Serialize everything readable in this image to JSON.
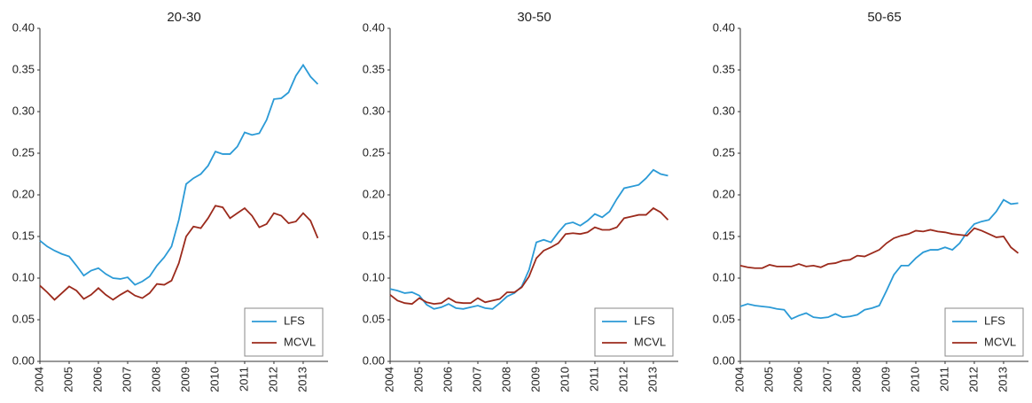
{
  "chart_data": [
    {
      "type": "line",
      "title": "20-30",
      "x": [
        2004,
        2004.25,
        2004.5,
        2004.75,
        2005,
        2005.25,
        2005.5,
        2005.75,
        2006,
        2006.25,
        2006.5,
        2006.75,
        2007,
        2007.25,
        2007.5,
        2007.75,
        2008,
        2008.25,
        2008.5,
        2008.75,
        2009,
        2009.25,
        2009.5,
        2009.75,
        2010,
        2010.25,
        2010.5,
        2010.75,
        2011,
        2011.25,
        2011.5,
        2011.75,
        2012,
        2012.25,
        2012.5,
        2012.75,
        2013,
        2013.25,
        2013.5
      ],
      "series": [
        {
          "name": "LFS",
          "color": "#2b9ad6",
          "values": [
            0.145,
            0.138,
            0.133,
            0.129,
            0.126,
            0.115,
            0.103,
            0.109,
            0.112,
            0.105,
            0.1,
            0.099,
            0.101,
            0.092,
            0.096,
            0.102,
            0.115,
            0.125,
            0.138,
            0.17,
            0.213,
            0.22,
            0.225,
            0.235,
            0.252,
            0.249,
            0.249,
            0.258,
            0.275,
            0.272,
            0.274,
            0.29,
            0.315,
            0.316,
            0.323,
            0.343,
            0.356,
            0.342,
            0.333
          ]
        },
        {
          "name": "MCVL",
          "color": "#9b2a1c",
          "values": [
            0.091,
            0.083,
            0.074,
            0.082,
            0.09,
            0.085,
            0.075,
            0.08,
            0.088,
            0.08,
            0.074,
            0.08,
            0.085,
            0.079,
            0.076,
            0.082,
            0.093,
            0.092,
            0.097,
            0.118,
            0.15,
            0.162,
            0.16,
            0.172,
            0.187,
            0.185,
            0.172,
            0.178,
            0.184,
            0.175,
            0.161,
            0.165,
            0.178,
            0.175,
            0.166,
            0.168,
            0.178,
            0.169,
            0.148
          ]
        }
      ],
      "xlim": [
        2004,
        2013.85
      ],
      "xticks": [
        2004,
        2005,
        2006,
        2007,
        2008,
        2009,
        2010,
        2011,
        2012,
        2013
      ],
      "ylim": [
        0,
        0.4
      ],
      "yticks": [
        {
          "value": 0,
          "label": "0.00"
        },
        {
          "value": 0.05,
          "label": "0.05"
        },
        {
          "value": 0.1,
          "label": "0.10"
        },
        {
          "value": 0.15,
          "label": "0.15"
        },
        {
          "value": 0.2,
          "label": "0.20"
        },
        {
          "value": 0.25,
          "label": "0.25"
        },
        {
          "value": 0.3,
          "label": "0.30"
        },
        {
          "value": 0.35,
          "label": "0.35"
        },
        {
          "value": 0.4,
          "label": "0.40"
        }
      ],
      "legend": "lower right"
    },
    {
      "type": "line",
      "title": "30-50",
      "x": [
        2004,
        2004.25,
        2004.5,
        2004.75,
        2005,
        2005.25,
        2005.5,
        2005.75,
        2006,
        2006.25,
        2006.5,
        2006.75,
        2007,
        2007.25,
        2007.5,
        2007.75,
        2008,
        2008.25,
        2008.5,
        2008.75,
        2009,
        2009.25,
        2009.5,
        2009.75,
        2010,
        2010.25,
        2010.5,
        2010.75,
        2011,
        2011.25,
        2011.5,
        2011.75,
        2012,
        2012.25,
        2012.5,
        2012.75,
        2013,
        2013.25,
        2013.5
      ],
      "series": [
        {
          "name": "LFS",
          "color": "#2b9ad6",
          "values": [
            0.087,
            0.085,
            0.082,
            0.083,
            0.079,
            0.068,
            0.063,
            0.065,
            0.069,
            0.064,
            0.063,
            0.065,
            0.067,
            0.064,
            0.063,
            0.07,
            0.078,
            0.082,
            0.09,
            0.11,
            0.143,
            0.146,
            0.143,
            0.155,
            0.165,
            0.167,
            0.163,
            0.169,
            0.177,
            0.173,
            0.18,
            0.195,
            0.208,
            0.21,
            0.212,
            0.22,
            0.23,
            0.225,
            0.223
          ]
        },
        {
          "name": "MCVL",
          "color": "#9b2a1c",
          "values": [
            0.08,
            0.073,
            0.07,
            0.069,
            0.076,
            0.071,
            0.069,
            0.07,
            0.076,
            0.071,
            0.07,
            0.07,
            0.076,
            0.071,
            0.073,
            0.075,
            0.083,
            0.083,
            0.089,
            0.102,
            0.124,
            0.133,
            0.137,
            0.142,
            0.153,
            0.154,
            0.153,
            0.155,
            0.161,
            0.158,
            0.158,
            0.161,
            0.172,
            0.174,
            0.176,
            0.176,
            0.184,
            0.179,
            0.17
          ]
        }
      ],
      "xlim": [
        2004,
        2013.85
      ],
      "xticks": [
        2004,
        2005,
        2006,
        2007,
        2008,
        2009,
        2010,
        2011,
        2012,
        2013
      ],
      "ylim": [
        0,
        0.4
      ],
      "yticks": [
        {
          "value": 0,
          "label": "0.00"
        },
        {
          "value": 0.05,
          "label": "0.05"
        },
        {
          "value": 0.1,
          "label": "0.10"
        },
        {
          "value": 0.15,
          "label": "0.15"
        },
        {
          "value": 0.2,
          "label": "0.20"
        },
        {
          "value": 0.25,
          "label": "0.25"
        },
        {
          "value": 0.3,
          "label": "0.30"
        },
        {
          "value": 0.35,
          "label": "0.35"
        },
        {
          "value": 0.4,
          "label": "0.40"
        }
      ],
      "legend": "lower right"
    },
    {
      "type": "line",
      "title": "50-65",
      "x": [
        2004,
        2004.25,
        2004.5,
        2004.75,
        2005,
        2005.25,
        2005.5,
        2005.75,
        2006,
        2006.25,
        2006.5,
        2006.75,
        2007,
        2007.25,
        2007.5,
        2007.75,
        2008,
        2008.25,
        2008.5,
        2008.75,
        2009,
        2009.25,
        2009.5,
        2009.75,
        2010,
        2010.25,
        2010.5,
        2010.75,
        2011,
        2011.25,
        2011.5,
        2011.75,
        2012,
        2012.25,
        2012.5,
        2012.75,
        2013,
        2013.25,
        2013.5
      ],
      "series": [
        {
          "name": "LFS",
          "color": "#2b9ad6",
          "values": [
            0.066,
            0.069,
            0.067,
            0.066,
            0.065,
            0.063,
            0.062,
            0.051,
            0.055,
            0.058,
            0.053,
            0.052,
            0.053,
            0.057,
            0.053,
            0.054,
            0.056,
            0.062,
            0.064,
            0.067,
            0.085,
            0.104,
            0.115,
            0.115,
            0.124,
            0.131,
            0.134,
            0.134,
            0.137,
            0.134,
            0.142,
            0.155,
            0.165,
            0.168,
            0.17,
            0.18,
            0.194,
            0.189,
            0.19
          ]
        },
        {
          "name": "MCVL",
          "color": "#9b2a1c",
          "values": [
            0.115,
            0.113,
            0.112,
            0.112,
            0.116,
            0.114,
            0.114,
            0.114,
            0.117,
            0.114,
            0.115,
            0.113,
            0.117,
            0.118,
            0.121,
            0.122,
            0.127,
            0.126,
            0.13,
            0.134,
            0.142,
            0.148,
            0.151,
            0.153,
            0.157,
            0.156,
            0.158,
            0.156,
            0.155,
            0.153,
            0.152,
            0.151,
            0.16,
            0.157,
            0.153,
            0.149,
            0.15,
            0.137,
            0.13
          ]
        }
      ],
      "xlim": [
        2004,
        2013.85
      ],
      "xticks": [
        2004,
        2005,
        2006,
        2007,
        2008,
        2009,
        2010,
        2011,
        2012,
        2013
      ],
      "ylim": [
        0,
        0.4
      ],
      "yticks": [
        {
          "value": 0,
          "label": "0.00"
        },
        {
          "value": 0.05,
          "label": "0.05"
        },
        {
          "value": 0.1,
          "label": "0.10"
        },
        {
          "value": 0.15,
          "label": "0.15"
        },
        {
          "value": 0.2,
          "label": "0.20"
        },
        {
          "value": 0.25,
          "label": "0.25"
        },
        {
          "value": 0.3,
          "label": "0.30"
        },
        {
          "value": 0.35,
          "label": "0.35"
        },
        {
          "value": 0.4,
          "label": "0.40"
        }
      ],
      "legend": "lower right"
    }
  ]
}
